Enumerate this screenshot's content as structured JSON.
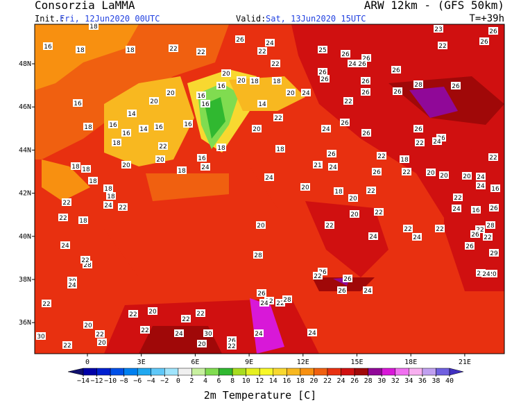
{
  "header": {
    "left_title": "Consorzia LaMMA",
    "right_title": "ARW 12km - (GFS 50km)",
    "init_label": "Init.:",
    "init_time": "Fri, 12Jun2020 00UTC",
    "valid_label": "Valid:",
    "valid_time": "Sat, 13Jun2020 15UTC",
    "lead_time": "T=+39h"
  },
  "map": {
    "lat_ticks": [
      {
        "value": 48,
        "label": "48N"
      },
      {
        "value": 46,
        "label": "46N"
      },
      {
        "value": 44,
        "label": "44N"
      },
      {
        "value": 42,
        "label": "42N"
      },
      {
        "value": 40,
        "label": "40N"
      },
      {
        "value": 38,
        "label": "38N"
      },
      {
        "value": 36,
        "label": "36N"
      }
    ],
    "lon_ticks": [
      0,
      {
        "value": 3,
        "label": "3E"
      },
      {
        "value": 6,
        "label": "6E"
      },
      {
        "value": 9,
        "label": "9E"
      },
      {
        "value": 12,
        "label": "12E"
      },
      {
        "value": 15,
        "label": "15E"
      },
      {
        "value": 18,
        "label": "18E"
      },
      {
        "value": 21,
        "label": "21E"
      }
    ],
    "station_values": [
      18,
      16,
      18,
      18,
      22,
      22,
      26,
      24,
      22,
      25,
      26,
      26,
      24,
      26,
      22,
      23,
      26,
      22,
      26,
      26,
      20,
      20,
      18,
      18,
      16,
      16,
      26,
      26,
      28,
      26,
      26,
      26,
      20,
      20,
      24,
      16,
      20,
      16,
      14,
      22,
      14,
      22,
      16,
      14,
      16,
      16,
      26,
      18,
      16,
      20,
      24,
      26,
      26,
      26,
      18,
      18,
      18,
      22,
      24,
      22,
      26,
      22,
      18,
      22,
      16,
      20,
      18,
      18,
      20,
      21,
      24,
      26,
      22,
      20,
      20,
      20,
      24,
      18,
      24,
      24,
      18,
      24,
      16,
      18,
      18,
      20,
      18,
      22,
      22,
      22,
      24,
      20,
      22,
      22,
      18,
      20,
      22,
      20,
      22,
      24,
      16,
      26,
      28,
      24,
      22,
      22,
      22,
      26,
      24,
      24,
      22,
      26,
      28,
      29,
      28,
      22,
      26,
      22,
      26,
      30,
      24,
      22,
      20,
      24,
      26,
      22,
      22,
      28,
      24,
      26,
      24,
      22,
      20,
      22,
      22,
      22,
      20,
      22,
      24,
      22,
      24,
      30,
      24,
      30,
      20,
      22,
      20,
      26,
      22,
      26
    ]
  },
  "colorbar": {
    "title": "2m Temperature [C]",
    "ticks": [
      {
        "value": -14,
        "label": "−14"
      },
      {
        "value": -12,
        "label": "−12"
      },
      {
        "value": -10,
        "label": "−10"
      },
      {
        "value": -8,
        "label": "−8"
      },
      {
        "value": -6,
        "label": "−6"
      },
      {
        "value": -4,
        "label": "−4"
      },
      {
        "value": -2,
        "label": "−2"
      },
      0,
      2,
      4,
      6,
      8,
      10,
      12,
      14,
      16,
      18,
      20,
      22,
      24,
      26,
      28,
      30,
      32,
      34,
      36,
      38,
      40
    ],
    "colors": [
      "#10106e",
      "#0000a8",
      "#0020d0",
      "#0050e8",
      "#0080f0",
      "#20a8f0",
      "#60c8f8",
      "#a0e4fc",
      "#f0f0f0",
      "#c8f0a0",
      "#80dc50",
      "#30b830",
      "#a8dc20",
      "#e6f020",
      "#f8f828",
      "#f8d830",
      "#f8b820",
      "#f89010",
      "#f06010",
      "#e83010",
      "#d01010",
      "#a00808",
      "#900898",
      "#d818d8",
      "#f070f0",
      "#f8b0f0",
      "#c0a0f0",
      "#7060e0",
      "#4030c0"
    ]
  }
}
